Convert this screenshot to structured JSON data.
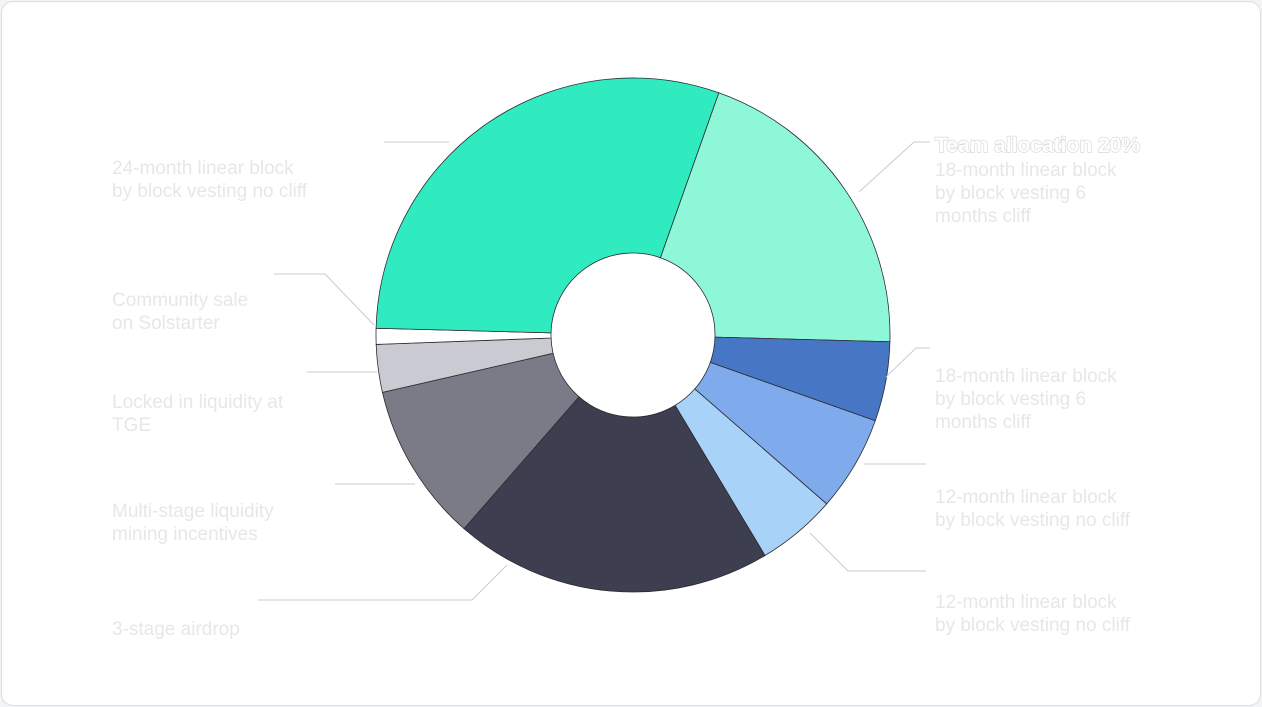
{
  "chart_data": {
    "type": "pie",
    "variant": "donut",
    "slices": [
      {
        "value": 20,
        "color": "#8ef7d8",
        "label_head": "Team allocation 20%",
        "label_lines": [
          "18-month linear block",
          "by block vesting 6",
          "months cliff"
        ],
        "side": "right"
      },
      {
        "value": 5,
        "color": "#4777c4",
        "label_lines": [
          "18-month linear block",
          "by block vesting 6",
          "months cliff"
        ],
        "side": "right"
      },
      {
        "value": 6,
        "color": "#7faaec",
        "label_lines": [
          "12-month linear block",
          "by block vesting no cliff"
        ],
        "side": "right"
      },
      {
        "value": 5,
        "color": "#a8d2f7",
        "label_lines": [
          "12-month linear block",
          "by block vesting no cliff"
        ],
        "side": "right"
      },
      {
        "value": 20,
        "color": "#3d3f50",
        "label_lines": [
          "3-stage airdrop"
        ],
        "side": "left"
      },
      {
        "value": 10,
        "color": "#7a7b87",
        "label_lines": [
          "Multi-stage liquidity",
          "mining incentives"
        ],
        "side": "left"
      },
      {
        "value": 3,
        "color": "#cacbd2",
        "label_lines": [
          "Locked in liquidity at",
          "TGE"
        ],
        "side": "left"
      },
      {
        "value": 1,
        "color": "#ffffff",
        "label_lines": [
          "Community sale",
          "on Solstarter"
        ],
        "side": "left"
      },
      {
        "value": 30,
        "color": "#31ebc0",
        "label_lines": [
          "24-month linear block",
          "by block vesting no cliff"
        ],
        "side": "left"
      }
    ],
    "legend": "none"
  }
}
